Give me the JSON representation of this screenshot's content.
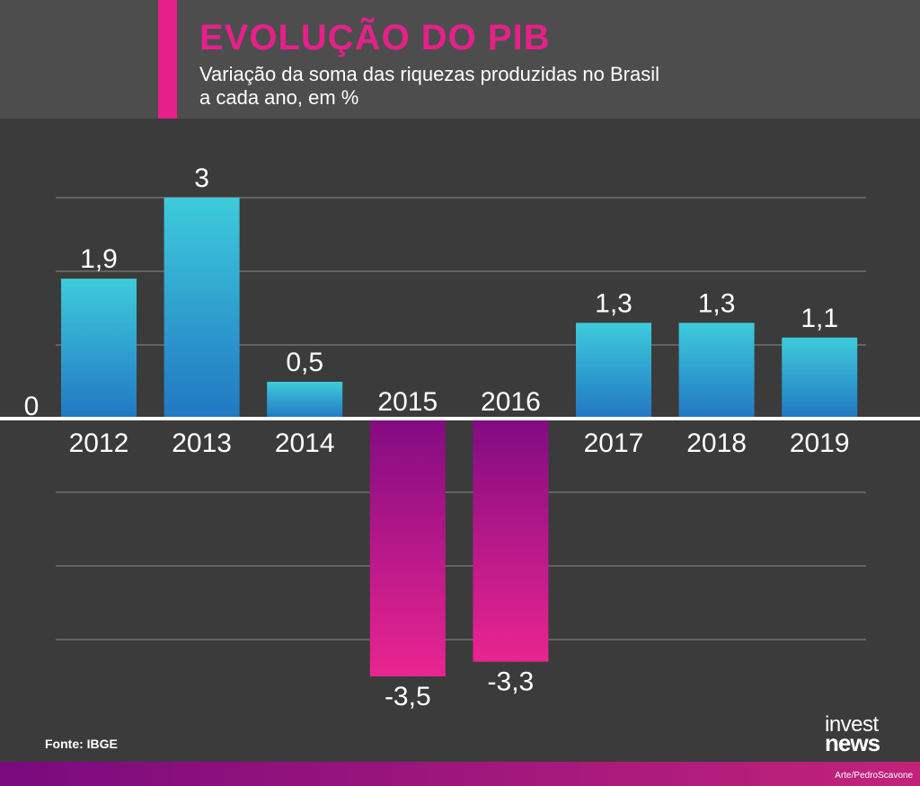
{
  "header": {
    "title": "EVOLUÇÃO DO PIB",
    "subtitle_line1": "Variação da soma das riquezas produzidas no Brasil",
    "subtitle_line2": "a cada ano, em %"
  },
  "chart_data": {
    "type": "bar",
    "title": "EVOLUÇÃO DO PIB",
    "subtitle": "Variação da soma das riquezas produzidas no Brasil a cada ano, em %",
    "categories": [
      "2012",
      "2013",
      "2014",
      "2015",
      "2016",
      "2017",
      "2018",
      "2019"
    ],
    "values": [
      1.9,
      3,
      0.5,
      -3.5,
      -3.3,
      1.3,
      1.3,
      1.1
    ],
    "value_labels": [
      "1,9",
      "3",
      "0,5",
      "-3,5",
      "-3,3",
      "1,3",
      "1,3",
      "1,1"
    ],
    "zero_label": "0",
    "ylim": [
      -3.5,
      3
    ],
    "grid": true,
    "xlabel": "",
    "ylabel": ""
  },
  "colors": {
    "background": "#3b3b3b",
    "header": "#4d4d4d",
    "accent": "#e6208a",
    "positive_top": "#3ecbdb",
    "positive_bottom": "#2177c3",
    "negative_top": "#820b82",
    "negative_bottom": "#ea2590",
    "grid": "#8a8a8a"
  },
  "footer": {
    "source": "Fonte: IBGE",
    "logo_line1": "invest",
    "logo_line2": "news",
    "credit": "Arte/PedroScavone"
  }
}
